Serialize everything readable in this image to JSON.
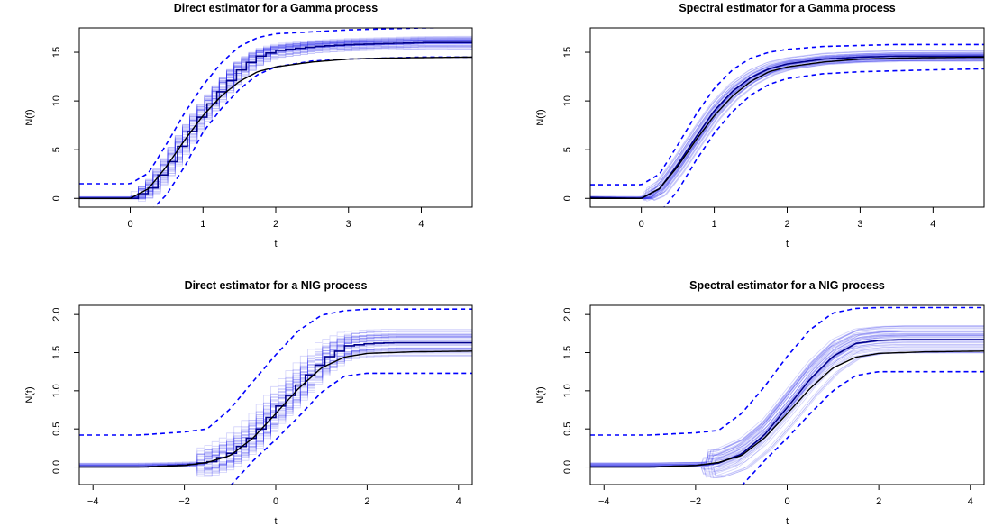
{
  "chart_data": [
    {
      "type": "line",
      "title": "Direct estimator for a Gamma process",
      "xlabel": "t",
      "ylabel": "N(t)",
      "xlim": [
        -0.7,
        4.7
      ],
      "ylim": [
        -0.9,
        17.5
      ],
      "x_ticks": [
        0,
        1,
        2,
        3,
        4
      ],
      "y_ticks": [
        0,
        5,
        10,
        15
      ],
      "style": "step",
      "x": [
        -0.7,
        0.0,
        0.25,
        0.5,
        0.75,
        1.0,
        1.25,
        1.5,
        1.75,
        2.0,
        2.5,
        3.0,
        3.5,
        4.0,
        4.7
      ],
      "series": [
        {
          "role": "true",
          "color": "#000000",
          "values": [
            0.0,
            0.0,
            1.0,
            3.3,
            6.0,
            8.5,
            10.5,
            12.0,
            13.0,
            13.5,
            14.0,
            14.3,
            14.4,
            14.45,
            14.5
          ]
        },
        {
          "role": "mean",
          "color": "#00008b",
          "values": [
            0.0,
            0.0,
            1.1,
            3.6,
            6.5,
            9.2,
            11.5,
            13.5,
            14.7,
            15.2,
            15.6,
            15.8,
            15.9,
            16.0,
            16.0
          ]
        },
        {
          "role": "upper band",
          "color": "#0000ff",
          "values": [
            1.5,
            1.5,
            2.6,
            5.6,
            8.8,
            11.6,
            13.9,
            15.6,
            16.5,
            16.9,
            17.1,
            17.3,
            17.4,
            17.5,
            17.6
          ]
        },
        {
          "role": "lower band",
          "color": "#0000ff",
          "values": [
            -1.5,
            -1.5,
            -1.5,
            0.4,
            3.3,
            6.8,
            9.2,
            11.2,
            12.7,
            13.5,
            14.1,
            14.3,
            14.4,
            14.5,
            14.5
          ]
        }
      ]
    },
    {
      "type": "line",
      "title": "Spectral estimator for a Gamma process",
      "xlabel": "t",
      "ylabel": "N(t)",
      "xlim": [
        -0.7,
        4.7
      ],
      "ylim": [
        -0.9,
        17.5
      ],
      "x_ticks": [
        0,
        1,
        2,
        3,
        4
      ],
      "y_ticks": [
        0,
        5,
        10,
        15
      ],
      "style": "smooth",
      "x": [
        -0.7,
        0.0,
        0.25,
        0.5,
        0.75,
        1.0,
        1.25,
        1.5,
        1.75,
        2.0,
        2.5,
        3.0,
        3.5,
        4.0,
        4.7
      ],
      "series": [
        {
          "role": "true",
          "color": "#000000",
          "values": [
            0.0,
            0.0,
            1.0,
            3.3,
            6.0,
            8.5,
            10.5,
            12.0,
            13.0,
            13.5,
            14.0,
            14.3,
            14.4,
            14.45,
            14.5
          ]
        },
        {
          "role": "mean",
          "color": "#00008b",
          "values": [
            0.1,
            0.0,
            1.0,
            3.5,
            6.3,
            9.0,
            11.0,
            12.4,
            13.3,
            13.8,
            14.3,
            14.5,
            14.6,
            14.6,
            14.6
          ]
        },
        {
          "role": "upper band",
          "color": "#0000ff",
          "values": [
            1.4,
            1.4,
            2.5,
            5.5,
            8.6,
            11.3,
            13.2,
            14.4,
            15.0,
            15.3,
            15.6,
            15.7,
            15.8,
            15.8,
            15.8
          ]
        },
        {
          "role": "lower band",
          "color": "#0000ff",
          "values": [
            -1.5,
            -1.5,
            -1.5,
            0.8,
            3.9,
            6.7,
            8.9,
            10.6,
            11.7,
            12.3,
            12.8,
            13.0,
            13.1,
            13.2,
            13.3
          ]
        }
      ]
    },
    {
      "type": "line",
      "title": "Direct estimator for a NIG process",
      "xlabel": "t",
      "ylabel": "N(t)",
      "xlim": [
        -4.3,
        4.3
      ],
      "ylim": [
        -0.23,
        2.12
      ],
      "x_ticks": [
        -4,
        -2,
        0,
        2,
        4
      ],
      "y_ticks": [
        0.0,
        0.5,
        1.0,
        1.5,
        2.0
      ],
      "y_tick_labels": [
        "0.0",
        "0.5",
        "1.0",
        "1.5",
        "2.0"
      ],
      "style": "step",
      "x": [
        -4.3,
        -3.0,
        -2.0,
        -1.5,
        -1.0,
        -0.5,
        0.0,
        0.5,
        1.0,
        1.5,
        2.0,
        2.5,
        3.0,
        4.3
      ],
      "series": [
        {
          "role": "true",
          "color": "#000000",
          "values": [
            0.0,
            0.0,
            0.02,
            0.06,
            0.15,
            0.38,
            0.7,
            1.03,
            1.3,
            1.44,
            1.49,
            1.5,
            1.51,
            1.52
          ]
        },
        {
          "role": "mean",
          "color": "#00008b",
          "values": [
            0.0,
            0.0,
            0.03,
            0.07,
            0.2,
            0.45,
            0.8,
            1.12,
            1.42,
            1.59,
            1.62,
            1.63,
            1.63,
            1.63
          ]
        },
        {
          "role": "upper band",
          "color": "#0000ff",
          "values": [
            0.42,
            0.42,
            0.46,
            0.5,
            0.76,
            1.12,
            1.47,
            1.79,
            1.99,
            2.05,
            2.07,
            2.07,
            2.07,
            2.07
          ]
        },
        {
          "role": "lower band",
          "color": "#0000ff",
          "values": [
            -0.4,
            -0.4,
            -0.4,
            -0.4,
            -0.25,
            0.08,
            0.36,
            0.66,
            0.98,
            1.19,
            1.23,
            1.23,
            1.23,
            1.23
          ]
        }
      ]
    },
    {
      "type": "line",
      "title": "Spectral estimator for a NIG process",
      "xlabel": "t",
      "ylabel": "N(t)",
      "xlim": [
        -4.3,
        4.3
      ],
      "ylim": [
        -0.23,
        2.12
      ],
      "x_ticks": [
        -4,
        -2,
        0,
        2,
        4
      ],
      "y_ticks": [
        0.0,
        0.5,
        1.0,
        1.5,
        2.0
      ],
      "y_tick_labels": [
        "0.0",
        "0.5",
        "1.0",
        "1.5",
        "2.0"
      ],
      "style": "smooth",
      "x": [
        -4.3,
        -3.0,
        -2.0,
        -1.5,
        -1.0,
        -0.5,
        0.0,
        0.5,
        1.0,
        1.5,
        2.0,
        2.5,
        3.0,
        4.3
      ],
      "series": [
        {
          "role": "true",
          "color": "#000000",
          "values": [
            0.0,
            0.0,
            0.02,
            0.06,
            0.15,
            0.38,
            0.7,
            1.03,
            1.3,
            1.44,
            1.49,
            1.5,
            1.51,
            1.52
          ]
        },
        {
          "role": "mean",
          "color": "#00008b",
          "values": [
            0.0,
            0.0,
            0.02,
            0.05,
            0.17,
            0.42,
            0.78,
            1.15,
            1.45,
            1.62,
            1.66,
            1.67,
            1.67,
            1.67
          ]
        },
        {
          "role": "upper band",
          "color": "#0000ff",
          "values": [
            0.42,
            0.42,
            0.45,
            0.48,
            0.7,
            1.05,
            1.45,
            1.8,
            2.02,
            2.08,
            2.09,
            2.09,
            2.09,
            2.09
          ]
        },
        {
          "role": "lower band",
          "color": "#0000ff",
          "values": [
            -0.4,
            -0.4,
            -0.4,
            -0.4,
            -0.25,
            0.08,
            0.38,
            0.7,
            1.0,
            1.2,
            1.25,
            1.25,
            1.25,
            1.25
          ]
        }
      ]
    }
  ]
}
